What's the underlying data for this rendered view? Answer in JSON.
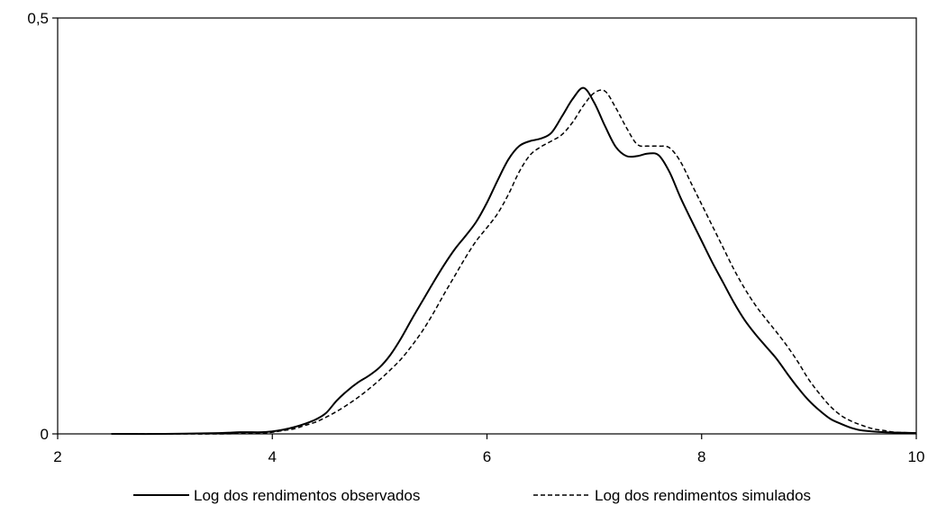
{
  "chart_data": {
    "type": "line",
    "title": "",
    "xlabel": "",
    "ylabel": "",
    "xlim": [
      2,
      10
    ],
    "ylim": [
      0,
      0.5
    ],
    "xticks": [
      2,
      4,
      6,
      8,
      10
    ],
    "xtick_labels": [
      "2",
      "4",
      "6",
      "8",
      "10"
    ],
    "yticks": [
      0,
      0.5
    ],
    "ytick_labels": [
      "0",
      "0,5"
    ],
    "grid": false,
    "legend_position": "bottom",
    "series": [
      {
        "name": "Log dos rendimentos observados",
        "style": "solid",
        "color": "#000000",
        "points": [
          [
            2.5,
            0.0
          ],
          [
            3.0,
            0.0
          ],
          [
            3.5,
            0.001
          ],
          [
            3.7,
            0.002
          ],
          [
            3.9,
            0.002
          ],
          [
            4.0,
            0.003
          ],
          [
            4.1,
            0.005
          ],
          [
            4.2,
            0.008
          ],
          [
            4.3,
            0.012
          ],
          [
            4.4,
            0.017
          ],
          [
            4.5,
            0.025
          ],
          [
            4.6,
            0.04
          ],
          [
            4.7,
            0.052
          ],
          [
            4.8,
            0.062
          ],
          [
            4.9,
            0.07
          ],
          [
            5.0,
            0.08
          ],
          [
            5.1,
            0.095
          ],
          [
            5.2,
            0.115
          ],
          [
            5.3,
            0.138
          ],
          [
            5.4,
            0.16
          ],
          [
            5.5,
            0.182
          ],
          [
            5.6,
            0.203
          ],
          [
            5.7,
            0.222
          ],
          [
            5.8,
            0.238
          ],
          [
            5.9,
            0.255
          ],
          [
            6.0,
            0.278
          ],
          [
            6.1,
            0.305
          ],
          [
            6.2,
            0.33
          ],
          [
            6.3,
            0.346
          ],
          [
            6.4,
            0.352
          ],
          [
            6.5,
            0.355
          ],
          [
            6.6,
            0.362
          ],
          [
            6.7,
            0.382
          ],
          [
            6.8,
            0.403
          ],
          [
            6.9,
            0.416
          ],
          [
            7.0,
            0.398
          ],
          [
            7.1,
            0.37
          ],
          [
            7.2,
            0.345
          ],
          [
            7.3,
            0.334
          ],
          [
            7.4,
            0.334
          ],
          [
            7.5,
            0.337
          ],
          [
            7.6,
            0.335
          ],
          [
            7.7,
            0.315
          ],
          [
            7.8,
            0.285
          ],
          [
            7.9,
            0.258
          ],
          [
            8.0,
            0.232
          ],
          [
            8.1,
            0.206
          ],
          [
            8.2,
            0.182
          ],
          [
            8.3,
            0.158
          ],
          [
            8.4,
            0.137
          ],
          [
            8.5,
            0.12
          ],
          [
            8.6,
            0.105
          ],
          [
            8.7,
            0.09
          ],
          [
            8.8,
            0.072
          ],
          [
            8.9,
            0.055
          ],
          [
            9.0,
            0.04
          ],
          [
            9.1,
            0.028
          ],
          [
            9.2,
            0.018
          ],
          [
            9.3,
            0.012
          ],
          [
            9.4,
            0.007
          ],
          [
            9.5,
            0.004
          ],
          [
            9.7,
            0.002
          ],
          [
            10.0,
            0.001
          ]
        ]
      },
      {
        "name": "Log dos rendimentos simulados",
        "style": "dashed",
        "color": "#000000",
        "points": [
          [
            2.5,
            0.0
          ],
          [
            3.0,
            0.0
          ],
          [
            3.5,
            0.0
          ],
          [
            3.9,
            0.001
          ],
          [
            4.0,
            0.002
          ],
          [
            4.1,
            0.004
          ],
          [
            4.2,
            0.006
          ],
          [
            4.3,
            0.01
          ],
          [
            4.4,
            0.014
          ],
          [
            4.5,
            0.02
          ],
          [
            4.6,
            0.027
          ],
          [
            4.7,
            0.035
          ],
          [
            4.8,
            0.044
          ],
          [
            4.9,
            0.054
          ],
          [
            5.0,
            0.065
          ],
          [
            5.1,
            0.077
          ],
          [
            5.2,
            0.09
          ],
          [
            5.3,
            0.106
          ],
          [
            5.4,
            0.124
          ],
          [
            5.5,
            0.145
          ],
          [
            5.6,
            0.168
          ],
          [
            5.7,
            0.19
          ],
          [
            5.8,
            0.212
          ],
          [
            5.9,
            0.232
          ],
          [
            6.0,
            0.248
          ],
          [
            6.1,
            0.265
          ],
          [
            6.2,
            0.288
          ],
          [
            6.3,
            0.315
          ],
          [
            6.4,
            0.335
          ],
          [
            6.5,
            0.345
          ],
          [
            6.6,
            0.352
          ],
          [
            6.7,
            0.36
          ],
          [
            6.8,
            0.375
          ],
          [
            6.9,
            0.395
          ],
          [
            7.0,
            0.41
          ],
          [
            7.1,
            0.412
          ],
          [
            7.2,
            0.392
          ],
          [
            7.3,
            0.368
          ],
          [
            7.4,
            0.348
          ],
          [
            7.5,
            0.346
          ],
          [
            7.6,
            0.346
          ],
          [
            7.7,
            0.344
          ],
          [
            7.8,
            0.328
          ],
          [
            7.9,
            0.302
          ],
          [
            8.0,
            0.276
          ],
          [
            8.1,
            0.25
          ],
          [
            8.2,
            0.224
          ],
          [
            8.3,
            0.198
          ],
          [
            8.4,
            0.175
          ],
          [
            8.5,
            0.155
          ],
          [
            8.6,
            0.138
          ],
          [
            8.7,
            0.122
          ],
          [
            8.8,
            0.105
          ],
          [
            8.9,
            0.086
          ],
          [
            9.0,
            0.065
          ],
          [
            9.1,
            0.048
          ],
          [
            9.2,
            0.033
          ],
          [
            9.3,
            0.022
          ],
          [
            9.4,
            0.015
          ],
          [
            9.5,
            0.01
          ],
          [
            9.6,
            0.006
          ],
          [
            9.7,
            0.004
          ],
          [
            9.8,
            0.002
          ],
          [
            10.0,
            0.001
          ]
        ]
      }
    ]
  }
}
